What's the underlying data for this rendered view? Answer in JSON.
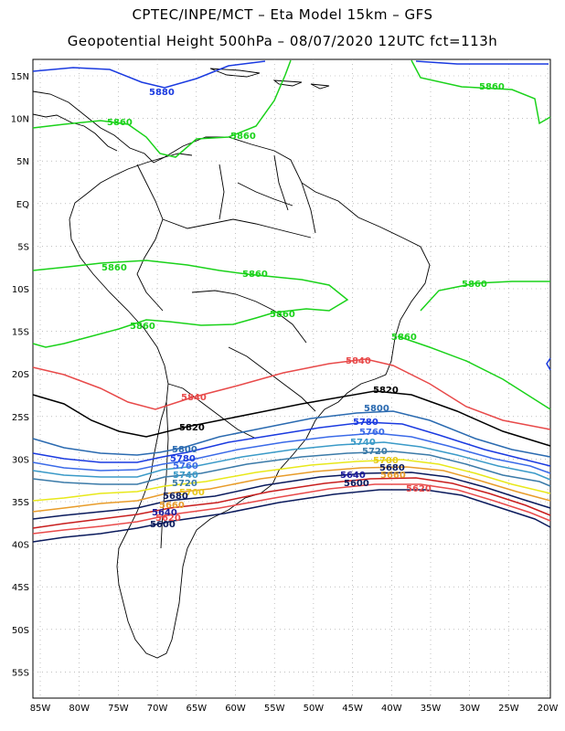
{
  "title_line1": "CPTEC/INPE/MCT –  Eta Model 15km – GFS",
  "title_line2": "Geopotential Height 500hPa – 08/07/2020 12UTC fct=113h",
  "lat_ticks": [
    "15N",
    "10N",
    "5N",
    "EQ",
    "5S",
    "10S",
    "15S",
    "20S",
    "25S",
    "30S",
    "35S",
    "40S",
    "45S",
    "50S",
    "55S"
  ],
  "lon_ticks": [
    "85W",
    "80W",
    "75W",
    "70W",
    "65W",
    "60W",
    "55W",
    "50W",
    "45W",
    "40W",
    "35W",
    "30W",
    "25W",
    "20W"
  ],
  "colors": {
    "c5900": "#0a1a5c",
    "c5880": "#c81e1e",
    "c5860": "#e89c2a",
    "c5840": "#1a1a9c",
    "c5820": "#e84a4a",
    "c5800": "#2a6ab0",
    "c5780": "#1a3ae0",
    "c5760": "#3a6ae8",
    "c5740": "#3a9ac8",
    "c5720": "#3a7aa8",
    "c5700": "#e8e81a",
    "c5840top": "#e84a4a",
    "c5820top": "#000000",
    "c5860green": "#1ad21a",
    "c5880blue": "#1a3ae0"
  },
  "contour_labels": {
    "l5880_north": "5880",
    "l5860_a": "5860",
    "l5860_b": "5860",
    "l5860_c": "5860",
    "l5860_d": "5860",
    "l5860_e": "5860",
    "l5860_f": "5860",
    "l5860_g": "5860",
    "l5860_h": "5860",
    "l5860_i": "5860",
    "l5840_a": "5840",
    "l5840_b": "5840",
    "l5820_a": "5820",
    "l5820_b": "5820",
    "l5800_a": "5800",
    "l5800_b": "5800",
    "l5780_a": "5780",
    "l5780_b": "5780",
    "l5760_a": "5760",
    "l5760_b": "5760",
    "l5740_a": "5740",
    "l5740_b": "5740",
    "l5720_a": "5720",
    "l5720_b": "5720",
    "l5700_a": "5700",
    "l5700_b": "5700",
    "l5680_a": "5680",
    "l5680_b": "5680",
    "l5660_a": "5660",
    "l5660_b": "5660",
    "l5640_a": "5640",
    "l5640_b": "5640",
    "l5620_a": "5620",
    "l5620_b": "5620",
    "l5600_a": "5600",
    "l5600_b": "5600"
  }
}
